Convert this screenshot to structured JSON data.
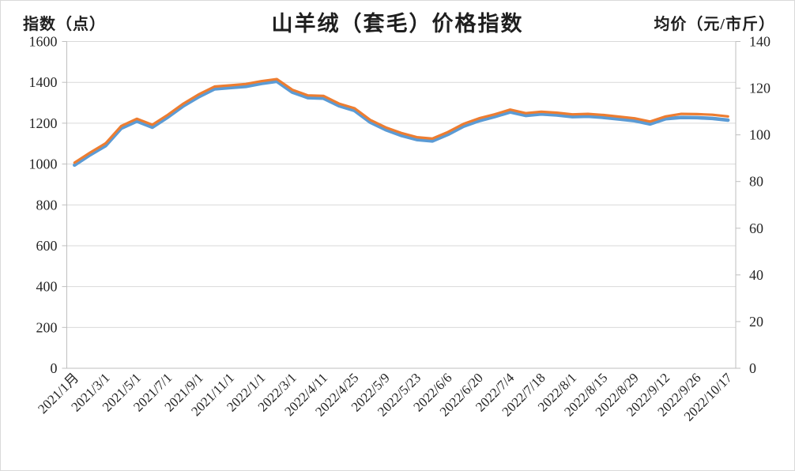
{
  "header": {
    "left_axis_title": "指数（点）",
    "chart_title": "山羊绒（套毛）价格指数",
    "right_axis_title": "均价（元/市斤）"
  },
  "chart_data": {
    "type": "line",
    "title": "山羊绒（套毛）价格指数",
    "ylabel_left": "指数（点）",
    "ylabel_right": "均价（元/市斤）",
    "grid": true,
    "legend": "none",
    "x_tick_rotation": 45,
    "left_axis": {
      "min": 0,
      "max": 1600,
      "ticks": [
        1600,
        1400,
        1200,
        1000,
        800,
        600,
        400,
        200,
        0
      ]
    },
    "right_axis": {
      "min": 0,
      "max": 140,
      "ticks": [
        140,
        120,
        100,
        80,
        60,
        40,
        20,
        0
      ]
    },
    "categories": [
      "2021/1月",
      "",
      "2021/3/1",
      "",
      "2021/5/1",
      "",
      "2021/7/1",
      "",
      "2021/9/1",
      "",
      "2021/11/1",
      "",
      "2022/1/1",
      "",
      "2022/3/1",
      "",
      "2022/4/11",
      "",
      "2022/4/25",
      "",
      "2022/5/9",
      "",
      "2022/5/23",
      "",
      "2022/6/6",
      "",
      "2022/6/20",
      "",
      "2022/7/4",
      "",
      "2022/7/18",
      "",
      "2022/8/1",
      "",
      "2022/8/15",
      "",
      "2022/8/29",
      "",
      "2022/9/12",
      "",
      "2022/9/26",
      "",
      "2022/10/17"
    ],
    "series": [
      {
        "name": "指数（点）",
        "axis": "left",
        "color": "#5B9BD5",
        "stroke_width": 4.5,
        "values": [
          995,
          1045,
          1090,
          1175,
          1210,
          1180,
          1230,
          1285,
          1330,
          1368,
          1374,
          1380,
          1394,
          1405,
          1352,
          1325,
          1322,
          1285,
          1262,
          1205,
          1168,
          1140,
          1120,
          1113,
          1145,
          1185,
          1212,
          1232,
          1255,
          1238,
          1245,
          1240,
          1232,
          1234,
          1228,
          1220,
          1212,
          1196,
          1222,
          1228,
          1227,
          1223,
          1215
        ]
      },
      {
        "name": "均价（元/市斤）",
        "axis": "right",
        "color": "#ED7D31",
        "stroke_width": 3.2,
        "values": [
          88.1,
          92.4,
          96.4,
          103.8,
          106.9,
          104.3,
          108.6,
          113.4,
          117.4,
          120.7,
          121.2,
          121.8,
          123.0,
          123.9,
          119.3,
          116.9,
          116.7,
          113.4,
          111.4,
          106.4,
          103.2,
          100.8,
          99.0,
          98.4,
          101.2,
          104.7,
          107.1,
          108.8,
          110.8,
          109.3,
          109.9,
          109.5,
          108.8,
          109.0,
          108.5,
          107.8,
          107.1,
          105.7,
          107.9,
          109.0,
          108.9,
          108.6,
          107.9
        ]
      }
    ]
  },
  "colors": {
    "background": "#FFFFFF",
    "frame_border": "#D9D9D9",
    "gridline": "#D9D9D9",
    "axis_line": "#BFBFBF",
    "index_line": "#5B9BD5",
    "price_line": "#ED7D31",
    "text": "#262626"
  }
}
